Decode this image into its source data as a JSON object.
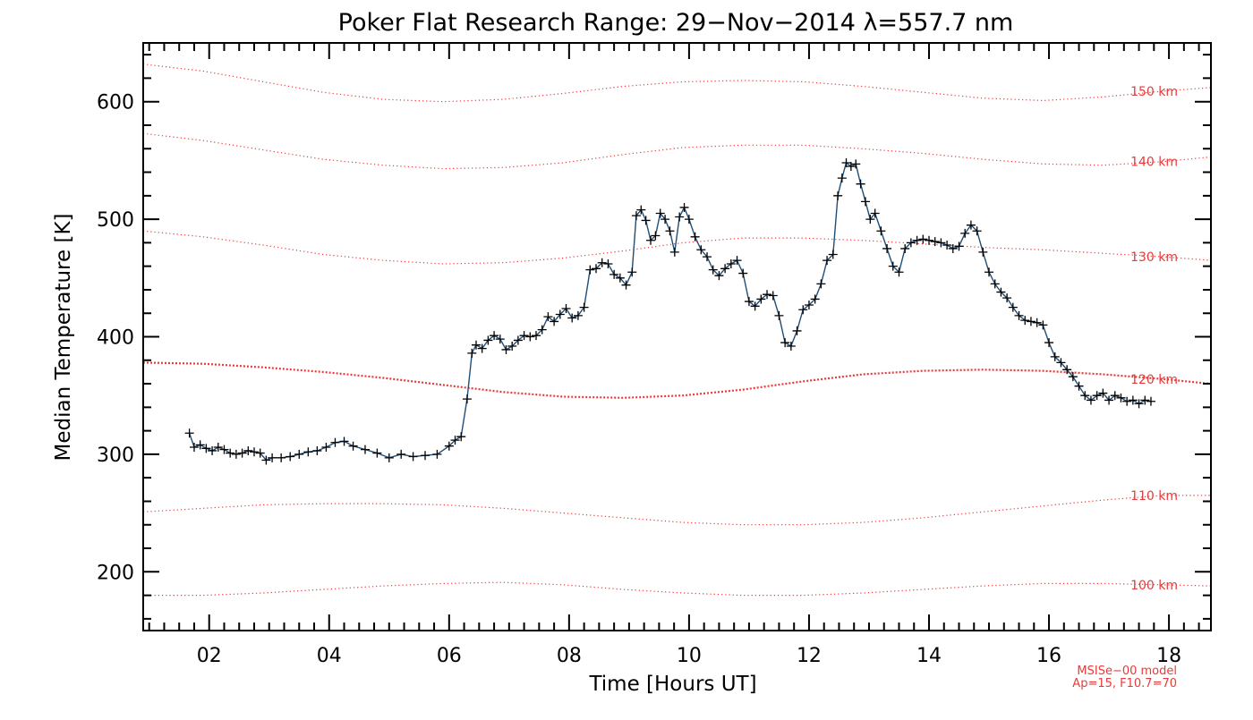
{
  "chart_data": {
    "type": "line",
    "title": "Poker Flat Research Range: 29−Nov−2014 λ=557.7 nm",
    "xlabel": "Time [Hours UT]",
    "ylabel": "Median Temperature [K]",
    "xlim": [
      0.9,
      18.7
    ],
    "ylim": [
      150,
      650
    ],
    "x_ticks": [
      2,
      4,
      6,
      8,
      10,
      12,
      14,
      16,
      18
    ],
    "x_tick_labels": [
      "02",
      "04",
      "06",
      "08",
      "10",
      "12",
      "14",
      "16",
      "18"
    ],
    "y_ticks": [
      200,
      300,
      400,
      500,
      600
    ],
    "y_tick_labels": [
      "200",
      "300",
      "400",
      "500",
      "600"
    ],
    "grid": false,
    "series": [
      {
        "marker": "plus",
        "color": "#000000",
        "line_color": "#1f4e79",
        "x": [
          1.67,
          1.75,
          1.85,
          1.95,
          2.05,
          2.15,
          2.25,
          2.35,
          2.45,
          2.55,
          2.65,
          2.75,
          2.85,
          2.95,
          3.05,
          3.2,
          3.35,
          3.5,
          3.65,
          3.8,
          3.95,
          4.1,
          4.25,
          4.4,
          4.6,
          4.8,
          5.0,
          5.2,
          5.4,
          5.6,
          5.8,
          6.0,
          6.1,
          6.2,
          6.3,
          6.38,
          6.45,
          6.55,
          6.65,
          6.75,
          6.85,
          6.95,
          7.05,
          7.15,
          7.25,
          7.35,
          7.45,
          7.55,
          7.65,
          7.75,
          7.85,
          7.95,
          8.05,
          8.15,
          8.25,
          8.35,
          8.45,
          8.55,
          8.65,
          8.75,
          8.85,
          8.95,
          9.05,
          9.12,
          9.2,
          9.28,
          9.36,
          9.44,
          9.52,
          9.6,
          9.68,
          9.76,
          9.84,
          9.92,
          10.0,
          10.1,
          10.2,
          10.3,
          10.4,
          10.5,
          10.6,
          10.7,
          10.8,
          10.9,
          11.0,
          11.1,
          11.2,
          11.3,
          11.4,
          11.5,
          11.6,
          11.7,
          11.8,
          11.9,
          12.0,
          12.1,
          12.2,
          12.3,
          12.4,
          12.48,
          12.55,
          12.62,
          12.7,
          12.78,
          12.86,
          12.94,
          13.02,
          13.1,
          13.2,
          13.3,
          13.4,
          13.5,
          13.6,
          13.7,
          13.8,
          13.9,
          14.0,
          14.1,
          14.2,
          14.3,
          14.4,
          14.5,
          14.6,
          14.7,
          14.8,
          14.9,
          15.0,
          15.1,
          15.2,
          15.3,
          15.4,
          15.5,
          15.6,
          15.7,
          15.8,
          15.9,
          16.0,
          16.1,
          16.2,
          16.3,
          16.4,
          16.5,
          16.6,
          16.7,
          16.8,
          16.9,
          17.0,
          17.1,
          17.2,
          17.3,
          17.4,
          17.5,
          17.6,
          17.7
        ],
        "y": [
          318,
          306,
          308,
          305,
          303,
          306,
          304,
          301,
          300,
          301,
          303,
          302,
          301,
          295,
          297,
          297,
          298,
          300,
          302,
          303,
          306,
          310,
          311,
          307,
          304,
          301,
          297,
          300,
          298,
          299,
          300,
          307,
          312,
          315,
          347,
          386,
          393,
          390,
          397,
          401,
          398,
          389,
          392,
          397,
          401,
          400,
          401,
          406,
          417,
          413,
          419,
          424,
          416,
          418,
          425,
          457,
          458,
          463,
          462,
          453,
          450,
          444,
          455,
          503,
          508,
          499,
          482,
          486,
          505,
          500,
          490,
          472,
          502,
          510,
          500,
          485,
          474,
          468,
          457,
          452,
          458,
          462,
          465,
          454,
          430,
          426,
          432,
          436,
          435,
          418,
          395,
          392,
          405,
          423,
          427,
          432,
          445,
          465,
          470,
          520,
          535,
          548,
          545,
          547,
          530,
          515,
          500,
          505,
          490,
          475,
          460,
          455,
          475,
          480,
          482,
          483,
          482,
          481,
          480,
          478,
          475,
          477,
          488,
          495,
          490,
          472,
          455,
          445,
          438,
          433,
          425,
          418,
          414,
          413,
          412,
          410,
          395,
          383,
          378,
          372,
          366,
          358,
          350,
          346,
          350,
          352,
          346,
          350,
          348,
          345,
          346,
          343,
          346,
          345
        ]
      }
    ],
    "reference_curves": [
      {
        "label": "100 km",
        "values": [
          180,
          180,
          182,
          185,
          188,
          190,
          191,
          189,
          185,
          182,
          180,
          180,
          182,
          185,
          188,
          190,
          190,
          189,
          188
        ]
      },
      {
        "label": "110 km",
        "values": [
          251,
          254,
          257,
          258,
          258,
          257,
          254,
          250,
          246,
          242,
          240,
          240,
          242,
          246,
          251,
          256,
          261,
          265,
          265
        ]
      },
      {
        "label": "120 km",
        "values": [
          378,
          377,
          374,
          370,
          365,
          359,
          353,
          349,
          348,
          350,
          355,
          362,
          368,
          371,
          372,
          371,
          368,
          364,
          360
        ],
        "emphasis": true
      },
      {
        "label": "130 km",
        "values": [
          490,
          485,
          478,
          470,
          465,
          462,
          463,
          467,
          473,
          480,
          484,
          484,
          482,
          479,
          476,
          474,
          471,
          468,
          465
        ]
      },
      {
        "label": "140 km",
        "values": [
          573,
          567,
          559,
          551,
          546,
          543,
          544,
          548,
          555,
          561,
          563,
          563,
          560,
          556,
          551,
          547,
          546,
          549,
          553
        ]
      },
      {
        "label": "150 km",
        "values": [
          632,
          626,
          617,
          608,
          602,
          600,
          602,
          607,
          613,
          617,
          618,
          617,
          613,
          608,
          603,
          601,
          604,
          609,
          612
        ]
      }
    ],
    "reference_x": [
      0.9,
      1.9,
      2.9,
      3.9,
      4.9,
      5.9,
      6.9,
      7.9,
      8.9,
      9.9,
      10.9,
      11.9,
      12.9,
      13.9,
      14.9,
      15.9,
      16.9,
      17.9,
      18.7
    ],
    "reference_color": "#e83a3a",
    "model_note": [
      "MSISe−00 model",
      "Ap=15, F10.7=70"
    ]
  }
}
